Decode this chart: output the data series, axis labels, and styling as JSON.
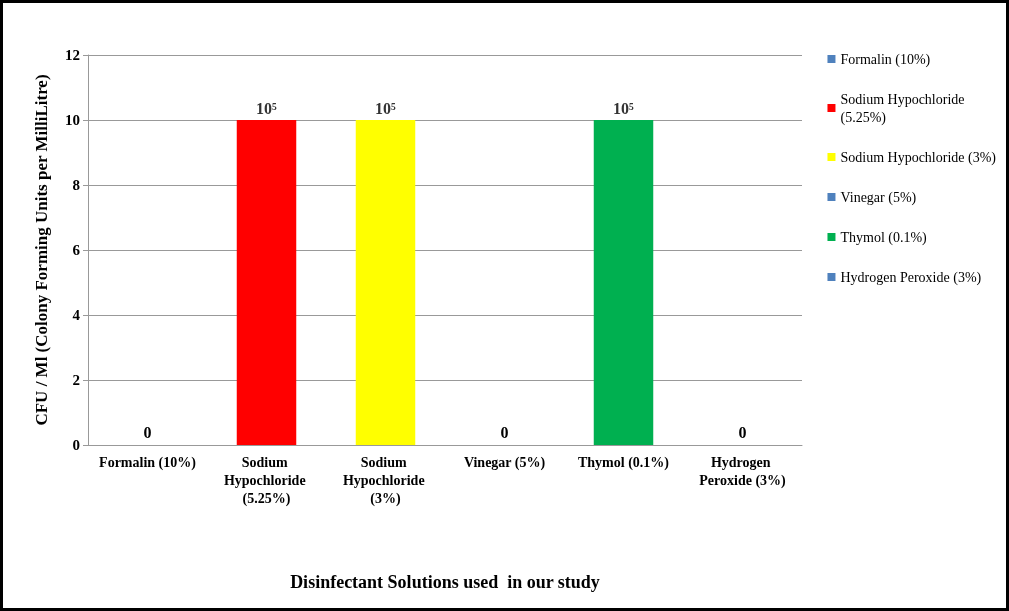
{
  "chart_data": {
    "type": "bar",
    "xlabel": "Disinfectant Solutions used  in our study",
    "ylabel": "CFU / Ml (Colony Forming Units per MilliLitre)",
    "categories": [
      "Formalin (10%)",
      "Sodium Hypochloride (5.25%)",
      "Sodium Hypochloride (3%)",
      "Vinegar (5%)",
      "Thymol (0.1%)",
      "Hydrogen Peroxide (3%)"
    ],
    "stacked": true,
    "series": [
      {
        "name": "Formalin (10%)",
        "color": "#4f81bd",
        "values": [
          0,
          null,
          null,
          null,
          null,
          null
        ],
        "value_labels": [
          "0",
          null,
          null,
          null,
          null,
          null
        ]
      },
      {
        "name": "Sodium Hypochloride (5.25%)",
        "color": "#ff0000",
        "values": [
          null,
          10,
          null,
          null,
          null,
          null
        ]
      },
      {
        "name": "Sodium Hypochloride (3%)",
        "color": "#ffff00",
        "values": [
          null,
          null,
          10,
          null,
          null,
          null
        ]
      },
      {
        "name": "Vinegar (5%)",
        "color": "#4f81bd",
        "values": [
          null,
          null,
          null,
          0,
          null,
          null
        ],
        "value_labels": [
          null,
          null,
          null,
          "0",
          null,
          null
        ]
      },
      {
        "name": "Thymol (0.1%)",
        "color": "#00b050",
        "values": [
          null,
          null,
          null,
          null,
          10,
          null
        ]
      },
      {
        "name": "Hydrogen Peroxide (3%)",
        "color": "#4f81bd",
        "values": [
          null,
          null,
          null,
          null,
          null,
          0
        ],
        "value_labels": [
          null,
          null,
          null,
          null,
          null,
          "0"
        ]
      }
    ],
    "annotations": [
      {
        "text": "10⁵",
        "x": "Sodium Hypochloride (5.25%)",
        "y": 10
      },
      {
        "text": "10⁵",
        "x": "Sodium Hypochloride (3%)",
        "y": 10
      },
      {
        "text": "10⁵",
        "x": "Thymol (0.1%)",
        "y": 10
      }
    ],
    "ylim": [
      0,
      12
    ],
    "yticks": [
      0,
      2,
      4,
      6,
      8,
      10,
      12
    ],
    "grid": "y",
    "legend": "right"
  }
}
